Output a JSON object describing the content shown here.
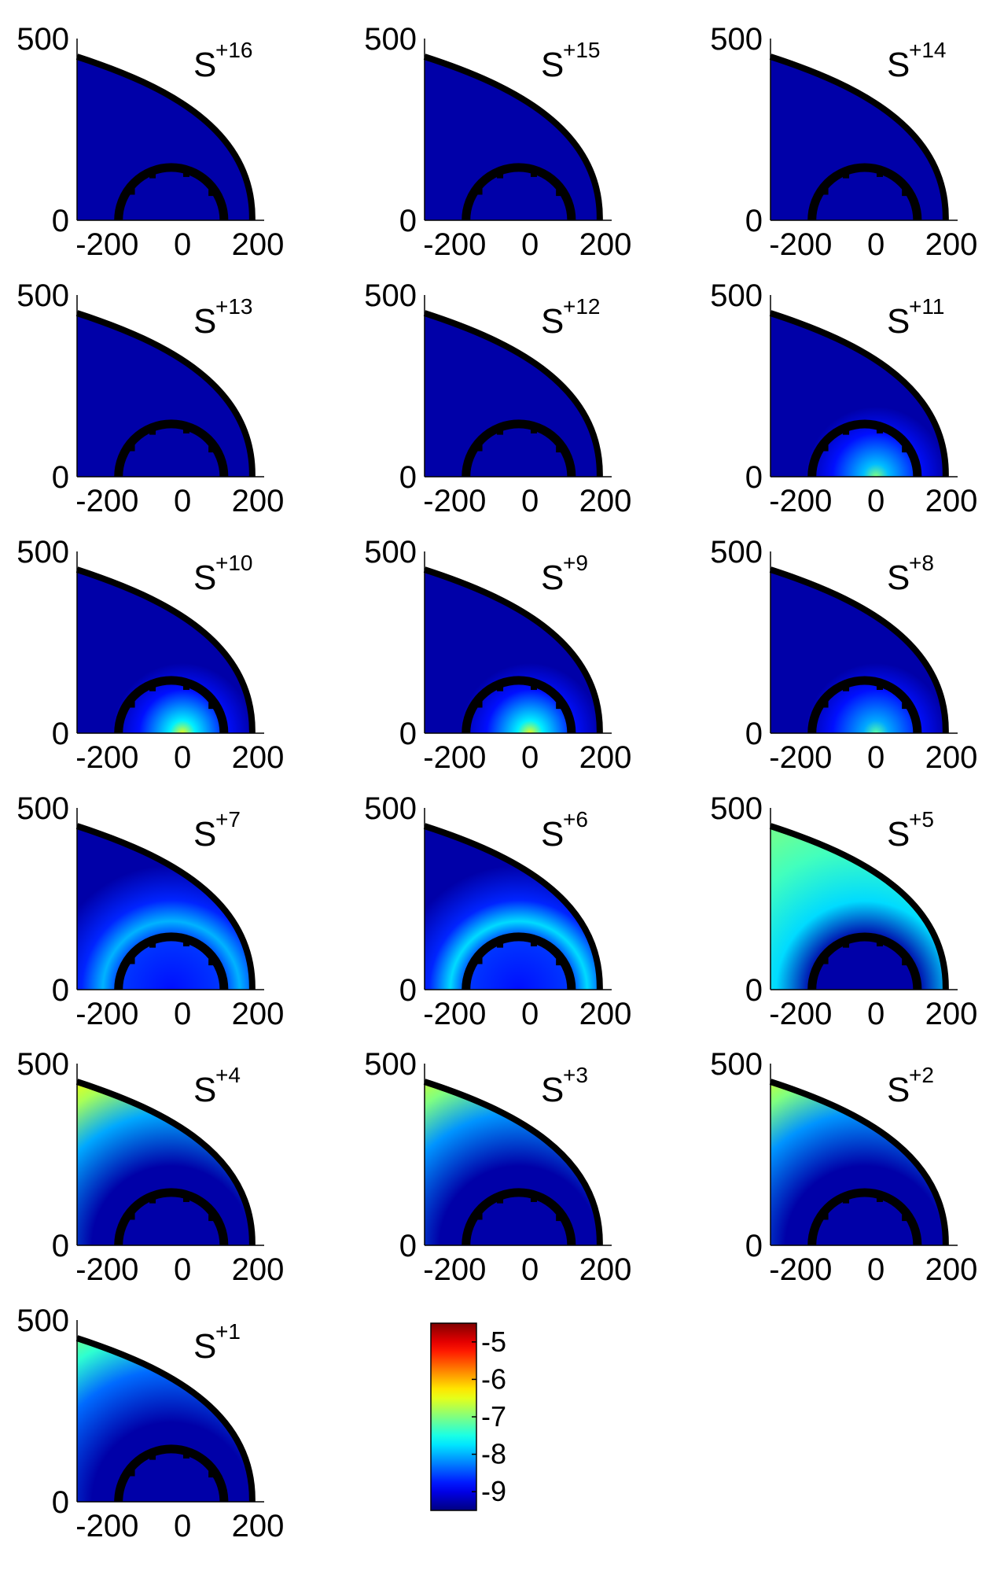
{
  "chart_data": {
    "type": "heatmap",
    "colormap": "jet",
    "colorbar": {
      "range": [
        -9.5,
        -4.5
      ],
      "ticks": [
        "-5",
        "-6",
        "-7",
        "-8",
        "-9"
      ],
      "tick_values": [
        -5,
        -6,
        -7,
        -8,
        -9
      ]
    },
    "x_axis": {
      "range": [
        -280,
        200
      ],
      "ticks": [
        "-200",
        "0",
        "200"
      ],
      "tick_values": [
        -200,
        0,
        200
      ]
    },
    "y_axis": {
      "range": [
        0,
        500
      ],
      "ticks": [
        "0",
        "500"
      ],
      "tick_values": [
        0,
        500
      ]
    },
    "boundary": {
      "outer_x_at_y0": 185,
      "outer_x_at_left": -280,
      "outer_y_at_left": 450,
      "inner_center_x": -30,
      "inner_radius": 140
    },
    "panels": [
      {
        "base": "S",
        "charge": "+16",
        "pattern": "uniform",
        "background": -9.3,
        "peak": -9.3
      },
      {
        "base": "S",
        "charge": "+15",
        "pattern": "uniform",
        "background": -9.3,
        "peak": -9.3
      },
      {
        "base": "S",
        "charge": "+14",
        "pattern": "uniform",
        "background": -9.3,
        "peak": -9.3
      },
      {
        "base": "S",
        "charge": "+13",
        "pattern": "uniform",
        "background": -9.3,
        "peak": -9.3
      },
      {
        "base": "S",
        "charge": "+12",
        "pattern": "uniform",
        "background": -9.3,
        "peak": -9.3
      },
      {
        "base": "S",
        "charge": "+11",
        "pattern": "center",
        "background": -9.3,
        "peak": -7.0
      },
      {
        "base": "S",
        "charge": "+10",
        "pattern": "center",
        "background": -9.3,
        "peak": -6.5
      },
      {
        "base": "S",
        "charge": "+9",
        "pattern": "center",
        "background": -9.3,
        "peak": -6.5
      },
      {
        "base": "S",
        "charge": "+8",
        "pattern": "center",
        "background": -9.3,
        "peak": -7.2
      },
      {
        "base": "S",
        "charge": "+7",
        "pattern": "ring",
        "background": -9.3,
        "peak": -8.0
      },
      {
        "base": "S",
        "charge": "+6",
        "pattern": "ring",
        "background": -9.3,
        "peak": -7.8
      },
      {
        "base": "S",
        "charge": "+5",
        "pattern": "outer-wide",
        "background": -9.3,
        "peak": -7.3
      },
      {
        "base": "S",
        "charge": "+4",
        "pattern": "outer-edge",
        "background": -9.3,
        "peak": -6.8
      },
      {
        "base": "S",
        "charge": "+3",
        "pattern": "outer-edge",
        "background": -9.3,
        "peak": -7.0
      },
      {
        "base": "S",
        "charge": "+2",
        "pattern": "outer-edge",
        "background": -9.3,
        "peak": -7.0
      },
      {
        "base": "S",
        "charge": "+1",
        "pattern": "outer-edge",
        "background": -9.3,
        "peak": -7.4
      }
    ]
  }
}
